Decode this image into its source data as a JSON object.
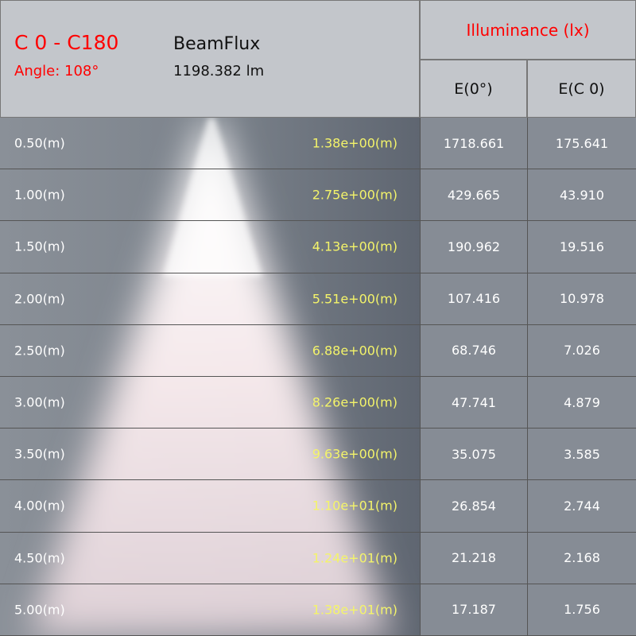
{
  "header": {
    "plane": "C 0 - C180",
    "angle": "Angle: 108°",
    "beamflux_label": "BeamFlux",
    "beamflux_value": "1198.382 lm",
    "illuminance_title": "Illuminance (lx)",
    "col1": "E(0°)",
    "col2": "E(C 0)"
  },
  "colors": {
    "accent_red": "#ff0000",
    "diameter_yellow": "#f4f46a"
  },
  "rows": [
    {
      "distance": "0.50(m)",
      "diameter": "1.38e+00(m)",
      "e0": "1718.661",
      "ec0": "175.641"
    },
    {
      "distance": "1.00(m)",
      "diameter": "2.75e+00(m)",
      "e0": "429.665",
      "ec0": "43.910"
    },
    {
      "distance": "1.50(m)",
      "diameter": "4.13e+00(m)",
      "e0": "190.962",
      "ec0": "19.516"
    },
    {
      "distance": "2.00(m)",
      "diameter": "5.51e+00(m)",
      "e0": "107.416",
      "ec0": "10.978"
    },
    {
      "distance": "2.50(m)",
      "diameter": "6.88e+00(m)",
      "e0": "68.746",
      "ec0": "7.026"
    },
    {
      "distance": "3.00(m)",
      "diameter": "8.26e+00(m)",
      "e0": "47.741",
      "ec0": "4.879"
    },
    {
      "distance": "3.50(m)",
      "diameter": "9.63e+00(m)",
      "e0": "35.075",
      "ec0": "3.585"
    },
    {
      "distance": "4.00(m)",
      "diameter": "1.10e+01(m)",
      "e0": "26.854",
      "ec0": "2.744"
    },
    {
      "distance": "4.50(m)",
      "diameter": "1.24e+01(m)",
      "e0": "21.218",
      "ec0": "2.168"
    },
    {
      "distance": "5.00(m)",
      "diameter": "1.38e+01(m)",
      "e0": "17.187",
      "ec0": "1.756"
    }
  ]
}
